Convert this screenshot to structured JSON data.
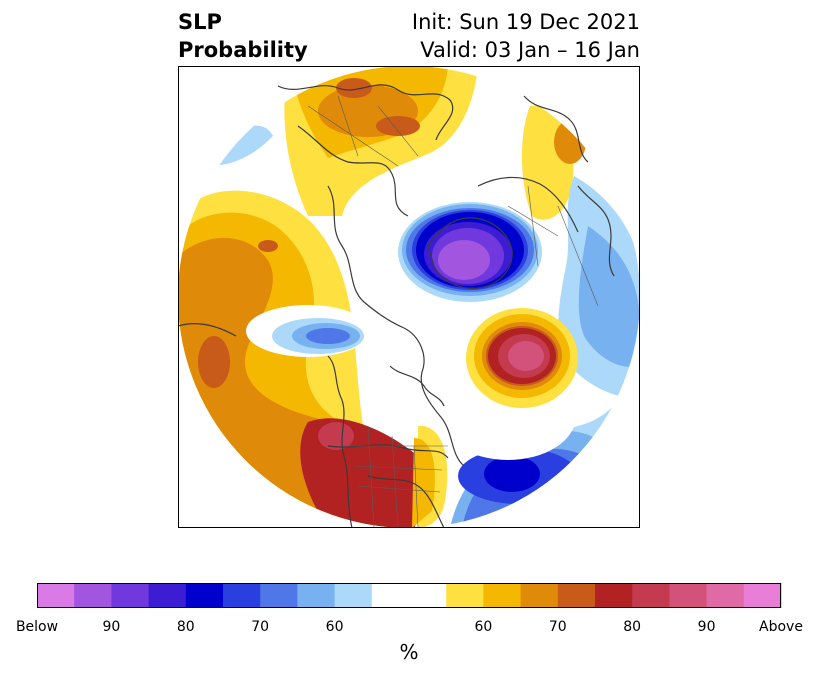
{
  "header": {
    "title_line1": "SLP",
    "title_line2": "Probability",
    "init": "Init: Sun 19 Dec 2021",
    "valid": "Valid: 03 Jan – 16 Jan"
  },
  "chart_data": {
    "type": "heatmap",
    "title": "SLP Probability",
    "projection": "north polar stereographic",
    "colorbar": {
      "unit_label": "%",
      "colors": [
        "#d97ae6",
        "#a256e0",
        "#7139dd",
        "#3d1dd4",
        "#0000cc",
        "#2a3fe0",
        "#4f77e8",
        "#77b1f0",
        "#acd9f9",
        "#ffffff",
        "#ffffff",
        "#fee040",
        "#f5b800",
        "#e08a0a",
        "#c85a1a",
        "#b22222",
        "#c43a4e",
        "#d2527b",
        "#e06aa6",
        "#e97ed9"
      ],
      "ticks": [
        "Below",
        "90",
        "80",
        "70",
        "60",
        "60",
        "70",
        "80",
        "90",
        "Above"
      ]
    }
  }
}
